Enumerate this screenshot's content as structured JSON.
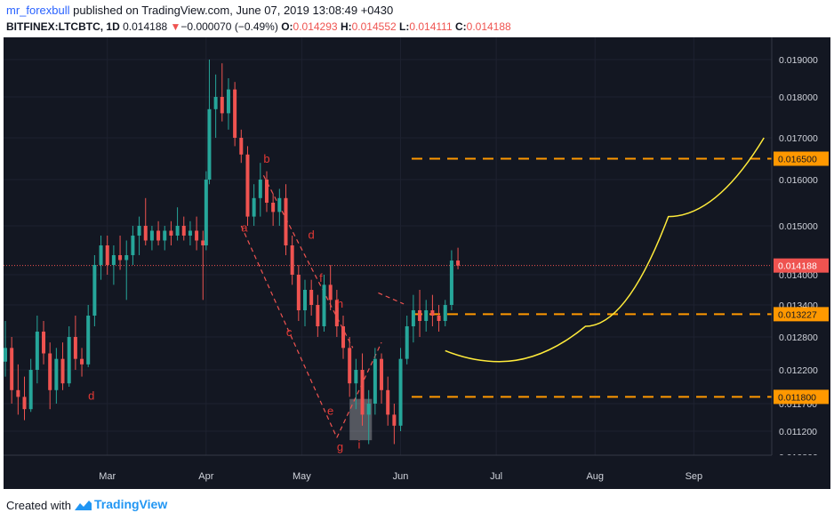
{
  "header": {
    "publisher_name": "mr_forexbull",
    "publisher_rest": " published on TradingView.com, June 07, 2019 13:08:49 +0430",
    "symbol": "BITFINEX:LTCBTC, 1D",
    "last": "0.014188",
    "arrow": "▼",
    "change": "−0.000070 (−0.49%)",
    "o_label": "O:",
    "o_value": "0.014293",
    "h_label": "H:",
    "h_value": "0.014552",
    "l_label": "L:",
    "l_value": "0.014111",
    "c_label": "C:",
    "c_value": "0.014188"
  },
  "footer": {
    "created_with": "Created with",
    "brand": "TradingView"
  },
  "chart_data": {
    "type": "candlestick",
    "y_ticks": [
      0.0108,
      0.0112,
      0.0117,
      0.0122,
      0.0128,
      0.0134,
      0.014,
      0.015,
      0.016,
      0.017,
      0.018,
      0.019
    ],
    "y_tick_labels": [
      "0.010800",
      "0.011200",
      "0.011700",
      "0.012200",
      "0.012800",
      "0.013400",
      "0.014000",
      "0.015000",
      "0.016000",
      "0.017000",
      "0.018000",
      "0.019000"
    ],
    "x_labels": [
      "Mar",
      "Apr",
      "May",
      "Jun",
      "Jul",
      "Aug",
      "Sep"
    ],
    "x_start": "2019-01-28",
    "x_end": "2019-09-26",
    "x_label_dates": [
      "2019-03-01",
      "2019-04-01",
      "2019-05-01",
      "2019-06-01",
      "2019-07-01",
      "2019-08-01",
      "2019-09-01"
    ],
    "last_price": 0.014188,
    "last_price_label": "0.014188",
    "price_levels": [
      {
        "value": 0.0165,
        "label": "0.016500"
      },
      {
        "value": 0.013227,
        "label": "0.013227"
      },
      {
        "value": 0.0118,
        "label": "0.011800"
      }
    ],
    "candles": [
      {
        "date": "2019-01-28",
        "o": 0.01235,
        "h": 0.0131,
        "l": 0.0121,
        "c": 0.0126
      },
      {
        "date": "2019-01-30",
        "o": 0.0126,
        "h": 0.0128,
        "l": 0.0117,
        "c": 0.0119
      },
      {
        "date": "2019-02-01",
        "o": 0.0119,
        "h": 0.0123,
        "l": 0.0115,
        "c": 0.0118
      },
      {
        "date": "2019-02-03",
        "o": 0.0118,
        "h": 0.0121,
        "l": 0.0114,
        "c": 0.0116
      },
      {
        "date": "2019-02-05",
        "o": 0.0116,
        "h": 0.0124,
        "l": 0.01155,
        "c": 0.0122
      },
      {
        "date": "2019-02-07",
        "o": 0.0122,
        "h": 0.0132,
        "l": 0.012,
        "c": 0.0129
      },
      {
        "date": "2019-02-09",
        "o": 0.0129,
        "h": 0.0131,
        "l": 0.0123,
        "c": 0.0125
      },
      {
        "date": "2019-02-11",
        "o": 0.0125,
        "h": 0.0127,
        "l": 0.0116,
        "c": 0.0119
      },
      {
        "date": "2019-02-13",
        "o": 0.0119,
        "h": 0.0126,
        "l": 0.0117,
        "c": 0.0124
      },
      {
        "date": "2019-02-15",
        "o": 0.0124,
        "h": 0.0127,
        "l": 0.0119,
        "c": 0.012
      },
      {
        "date": "2019-02-17",
        "o": 0.012,
        "h": 0.013,
        "l": 0.01195,
        "c": 0.0128
      },
      {
        "date": "2019-02-19",
        "o": 0.0128,
        "h": 0.0132,
        "l": 0.0122,
        "c": 0.0124
      },
      {
        "date": "2019-02-21",
        "o": 0.0124,
        "h": 0.0126,
        "l": 0.0121,
        "c": 0.0123
      },
      {
        "date": "2019-02-23",
        "o": 0.0123,
        "h": 0.0134,
        "l": 0.01225,
        "c": 0.0132
      },
      {
        "date": "2019-02-25",
        "o": 0.0132,
        "h": 0.0144,
        "l": 0.013,
        "c": 0.0142
      },
      {
        "date": "2019-02-27",
        "o": 0.0142,
        "h": 0.0148,
        "l": 0.0139,
        "c": 0.0146
      },
      {
        "date": "2019-03-01",
        "o": 0.0146,
        "h": 0.0148,
        "l": 0.014,
        "c": 0.0142
      },
      {
        "date": "2019-03-03",
        "o": 0.0142,
        "h": 0.0146,
        "l": 0.0138,
        "c": 0.0144
      },
      {
        "date": "2019-03-05",
        "o": 0.0144,
        "h": 0.0148,
        "l": 0.0141,
        "c": 0.0143
      },
      {
        "date": "2019-03-07",
        "o": 0.0143,
        "h": 0.0147,
        "l": 0.0135,
        "c": 0.0144
      },
      {
        "date": "2019-03-09",
        "o": 0.0144,
        "h": 0.015,
        "l": 0.0142,
        "c": 0.0148
      },
      {
        "date": "2019-03-11",
        "o": 0.0148,
        "h": 0.0152,
        "l": 0.0144,
        "c": 0.015
      },
      {
        "date": "2019-03-13",
        "o": 0.015,
        "h": 0.0156,
        "l": 0.0146,
        "c": 0.0147
      },
      {
        "date": "2019-03-15",
        "o": 0.0147,
        "h": 0.015,
        "l": 0.0145,
        "c": 0.0149
      },
      {
        "date": "2019-03-17",
        "o": 0.0149,
        "h": 0.0151,
        "l": 0.0146,
        "c": 0.0147
      },
      {
        "date": "2019-03-19",
        "o": 0.0147,
        "h": 0.015,
        "l": 0.0145,
        "c": 0.0149
      },
      {
        "date": "2019-03-21",
        "o": 0.0149,
        "h": 0.0151,
        "l": 0.0146,
        "c": 0.0148
      },
      {
        "date": "2019-03-23",
        "o": 0.0148,
        "h": 0.0154,
        "l": 0.0147,
        "c": 0.015
      },
      {
        "date": "2019-03-25",
        "o": 0.015,
        "h": 0.0152,
        "l": 0.0147,
        "c": 0.0148
      },
      {
        "date": "2019-03-27",
        "o": 0.0148,
        "h": 0.0151,
        "l": 0.0146,
        "c": 0.0149
      },
      {
        "date": "2019-03-29",
        "o": 0.0149,
        "h": 0.0152,
        "l": 0.0145,
        "c": 0.0147
      },
      {
        "date": "2019-03-31",
        "o": 0.0147,
        "h": 0.0149,
        "l": 0.0135,
        "c": 0.0146
      },
      {
        "date": "2019-04-01",
        "o": 0.0146,
        "h": 0.0162,
        "l": 0.0145,
        "c": 0.016
      },
      {
        "date": "2019-04-02",
        "o": 0.016,
        "h": 0.019,
        "l": 0.0159,
        "c": 0.0177
      },
      {
        "date": "2019-04-04",
        "o": 0.0177,
        "h": 0.0186,
        "l": 0.017,
        "c": 0.018
      },
      {
        "date": "2019-04-06",
        "o": 0.018,
        "h": 0.0189,
        "l": 0.0174,
        "c": 0.0176
      },
      {
        "date": "2019-04-08",
        "o": 0.0176,
        "h": 0.0185,
        "l": 0.0172,
        "c": 0.0182
      },
      {
        "date": "2019-04-10",
        "o": 0.0182,
        "h": 0.0184,
        "l": 0.0168,
        "c": 0.017
      },
      {
        "date": "2019-04-12",
        "o": 0.017,
        "h": 0.0172,
        "l": 0.0164,
        "c": 0.0166
      },
      {
        "date": "2019-04-14",
        "o": 0.0166,
        "h": 0.0168,
        "l": 0.015,
        "c": 0.0152
      },
      {
        "date": "2019-04-16",
        "o": 0.0152,
        "h": 0.0159,
        "l": 0.015,
        "c": 0.0156
      },
      {
        "date": "2019-04-18",
        "o": 0.0156,
        "h": 0.0164,
        "l": 0.0152,
        "c": 0.016
      },
      {
        "date": "2019-04-20",
        "o": 0.016,
        "h": 0.0162,
        "l": 0.0153,
        "c": 0.0155
      },
      {
        "date": "2019-04-22",
        "o": 0.0155,
        "h": 0.0157,
        "l": 0.015,
        "c": 0.0153
      },
      {
        "date": "2019-04-24",
        "o": 0.0153,
        "h": 0.0158,
        "l": 0.015,
        "c": 0.0156
      },
      {
        "date": "2019-04-26",
        "o": 0.0156,
        "h": 0.0159,
        "l": 0.0144,
        "c": 0.0146
      },
      {
        "date": "2019-04-28",
        "o": 0.0146,
        "h": 0.0148,
        "l": 0.0138,
        "c": 0.014
      },
      {
        "date": "2019-04-30",
        "o": 0.014,
        "h": 0.0142,
        "l": 0.0131,
        "c": 0.0133
      },
      {
        "date": "2019-05-02",
        "o": 0.0133,
        "h": 0.0139,
        "l": 0.013,
        "c": 0.0137
      },
      {
        "date": "2019-05-04",
        "o": 0.0137,
        "h": 0.0139,
        "l": 0.0132,
        "c": 0.0134
      },
      {
        "date": "2019-05-06",
        "o": 0.0134,
        "h": 0.0136,
        "l": 0.0128,
        "c": 0.013
      },
      {
        "date": "2019-05-08",
        "o": 0.013,
        "h": 0.014,
        "l": 0.0129,
        "c": 0.0138
      },
      {
        "date": "2019-05-10",
        "o": 0.0138,
        "h": 0.0142,
        "l": 0.0133,
        "c": 0.0135
      },
      {
        "date": "2019-05-12",
        "o": 0.0135,
        "h": 0.0137,
        "l": 0.0128,
        "c": 0.013
      },
      {
        "date": "2019-05-14",
        "o": 0.013,
        "h": 0.0132,
        "l": 0.0124,
        "c": 0.0126
      },
      {
        "date": "2019-05-16",
        "o": 0.0126,
        "h": 0.0128,
        "l": 0.0118,
        "c": 0.012
      },
      {
        "date": "2019-05-18",
        "o": 0.012,
        "h": 0.0124,
        "l": 0.0116,
        "c": 0.0122
      },
      {
        "date": "2019-05-20",
        "o": 0.0122,
        "h": 0.0125,
        "l": 0.0113,
        "c": 0.0115
      },
      {
        "date": "2019-05-22",
        "o": 0.0115,
        "h": 0.0119,
        "l": 0.011,
        "c": 0.0117
      },
      {
        "date": "2019-05-24",
        "o": 0.0117,
        "h": 0.0126,
        "l": 0.0115,
        "c": 0.0124
      },
      {
        "date": "2019-05-26",
        "o": 0.0124,
        "h": 0.0125,
        "l": 0.0117,
        "c": 0.0119
      },
      {
        "date": "2019-05-28",
        "o": 0.0119,
        "h": 0.0121,
        "l": 0.0113,
        "c": 0.0115
      },
      {
        "date": "2019-05-30",
        "o": 0.0115,
        "h": 0.0117,
        "l": 0.011,
        "c": 0.0113
      },
      {
        "date": "2019-06-01",
        "o": 0.0113,
        "h": 0.0126,
        "l": 0.0112,
        "c": 0.0124
      },
      {
        "date": "2019-06-03",
        "o": 0.0124,
        "h": 0.0132,
        "l": 0.0123,
        "c": 0.013
      },
      {
        "date": "2019-06-05",
        "o": 0.013,
        "h": 0.0136,
        "l": 0.0127,
        "c": 0.0133
      },
      {
        "date": "2019-06-07",
        "o": 0.0133,
        "h": 0.0137,
        "l": 0.0128,
        "c": 0.0131
      },
      {
        "date": "2019-06-09",
        "o": 0.0131,
        "h": 0.0135,
        "l": 0.0129,
        "c": 0.0133
      },
      {
        "date": "2019-06-11",
        "o": 0.0133,
        "h": 0.0136,
        "l": 0.013,
        "c": 0.0132
      },
      {
        "date": "2019-06-13",
        "o": 0.0132,
        "h": 0.0134,
        "l": 0.0129,
        "c": 0.0131
      },
      {
        "date": "2019-06-15",
        "o": 0.0131,
        "h": 0.0135,
        "l": 0.013,
        "c": 0.0134
      },
      {
        "date": "2019-06-17",
        "o": 0.0134,
        "h": 0.0145,
        "l": 0.0133,
        "c": 0.01429
      },
      {
        "date": "2019-06-19",
        "o": 0.01429,
        "h": 0.014552,
        "l": 0.014111,
        "c": 0.014188
      }
    ],
    "annotations": [
      {
        "text": "a",
        "date": "2019-04-13",
        "price": 0.01488
      },
      {
        "text": "b",
        "date": "2019-04-20",
        "price": 0.0164
      },
      {
        "text": "c",
        "date": "2019-04-27",
        "price": 0.01282
      },
      {
        "text": "d",
        "date": "2019-05-04",
        "price": 0.01474
      },
      {
        "text": "d",
        "date": "2019-02-24",
        "price": 0.01176
      },
      {
        "text": "f",
        "date": "2019-05-07",
        "price": 0.01386
      },
      {
        "text": "h",
        "date": "2019-05-13",
        "price": 0.01335
      },
      {
        "text": "e",
        "date": "2019-05-10",
        "price": 0.0115
      },
      {
        "text": "g",
        "date": "2019-05-13",
        "price": 0.0109
      },
      {
        "text": "i",
        "date": "2019-05-19",
        "price": 0.01093
      }
    ],
    "trend_lines": [
      {
        "from": {
          "date": "2019-04-12",
          "price": 0.015
        },
        "to": {
          "date": "2019-05-12",
          "price": 0.0111
        }
      },
      {
        "from": {
          "date": "2019-04-19",
          "price": 0.0161
        },
        "to": {
          "date": "2019-05-17",
          "price": 0.0126
        }
      },
      {
        "from": {
          "date": "2019-05-12",
          "price": 0.0111
        },
        "to": {
          "date": "2019-05-26",
          "price": 0.0127
        }
      },
      {
        "from": {
          "date": "2019-05-25",
          "price": 0.01364
        },
        "to": {
          "date": "2019-06-02",
          "price": 0.01342
        }
      }
    ],
    "highlight_box": {
      "from_date": "2019-05-16",
      "to_date": "2019-05-23",
      "price_top": 0.01177,
      "price_bottom": 0.01106
    },
    "projection_curve": [
      {
        "date": "2019-06-15",
        "price": 0.01255
      },
      {
        "date": "2019-07-02",
        "price": 0.01235
      },
      {
        "date": "2019-07-29",
        "price": 0.013
      },
      {
        "date": "2019-08-24",
        "price": 0.0152
      },
      {
        "date": "2019-09-23",
        "price": 0.017
      }
    ],
    "colors": {
      "background": "#131722",
      "up": "#26a69a",
      "down": "#ef5350",
      "level_line": "#ff9800",
      "last_price_line": "#ef5350",
      "projection": "#ffeb3b",
      "annotation_text": "#e53935",
      "axis_text": "#d1d4dc"
    }
  }
}
